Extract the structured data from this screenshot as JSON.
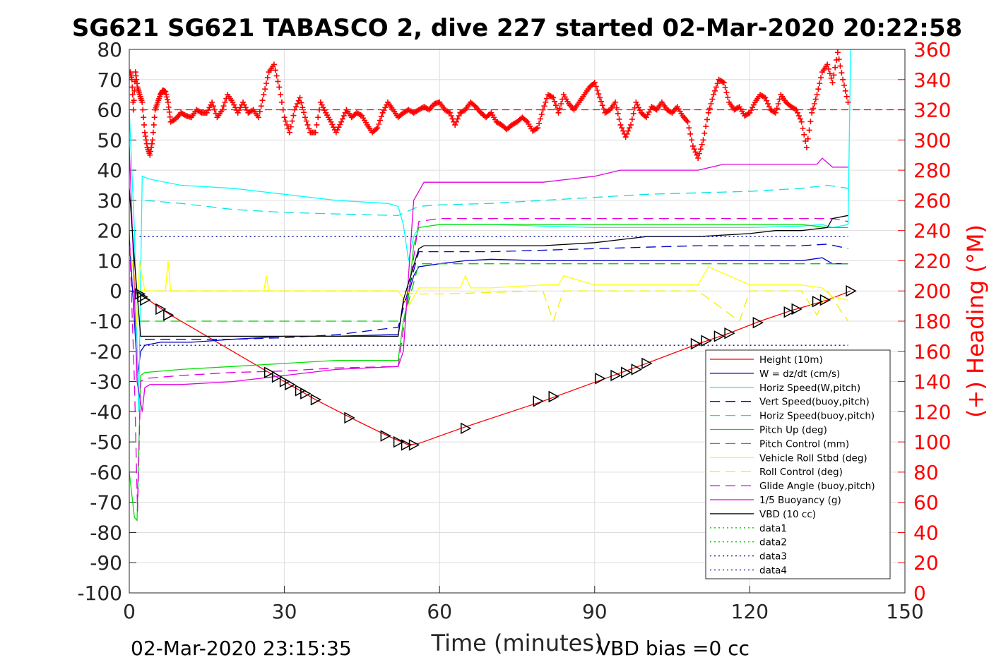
{
  "chart_data": {
    "type": "line",
    "title": "SG621 SG621 TABASCO 2, dive 227 started 02-Mar-2020 20:22:58",
    "xlabel": "Time (minutes)",
    "ylabel_right": "(+) Heading (°M)",
    "xlim": [
      0,
      150
    ],
    "ylim_left": [
      -100,
      80
    ],
    "ylim_right": [
      0,
      360
    ],
    "x_ticks": [
      "0",
      "30",
      "60",
      "90",
      "120",
      "150"
    ],
    "y_ticks_left": [
      "80",
      "70",
      "60",
      "50",
      "40",
      "30",
      "20",
      "10",
      "0",
      "-10",
      "-20",
      "-30",
      "-40",
      "-50",
      "-60",
      "-70",
      "-80",
      "-90",
      "-100"
    ],
    "y_ticks_right": [
      "360",
      "340",
      "320",
      "300",
      "280",
      "260",
      "240",
      "220",
      "200",
      "180",
      "160",
      "140",
      "120",
      "100",
      "80",
      "60",
      "40",
      "20",
      "0"
    ],
    "grid": true,
    "legend_position": "bottom-right",
    "footer_left": "02-Mar-2020 23:15:35",
    "footer_right": "VBD bias =0 cc",
    "series": [
      {
        "name": "Height (10m)",
        "color": "#ff0000",
        "style": "solid",
        "x": [
          0,
          2,
          8,
          20,
          27,
          36,
          44,
          50,
          54,
          56,
          65,
          80,
          92,
          100,
          110,
          116,
          122,
          128,
          135,
          139.5
        ],
        "y": [
          0,
          -1,
          -8,
          -20,
          -27,
          -36,
          -43,
          -48,
          -51,
          -50.5,
          -45,
          -36.5,
          -29,
          -24,
          -17.5,
          -14,
          -10,
          -6.5,
          -3,
          0
        ]
      },
      {
        "name": "W = dz/dt (cm/s)",
        "color": "#0000cc",
        "style": "solid",
        "x": [
          0,
          1,
          1.6,
          2.2,
          3,
          6,
          12,
          20,
          30,
          40,
          50,
          52,
          53,
          54,
          55,
          56,
          60,
          65,
          70,
          80,
          90,
          100,
          110,
          120,
          130,
          134,
          136,
          139
        ],
        "y": [
          18,
          -10,
          -28,
          -20,
          -18,
          -17,
          -17,
          -16,
          -15,
          -15,
          -14.5,
          -14.5,
          -4,
          -1,
          5,
          8,
          9,
          10,
          10.5,
          10,
          10,
          10,
          10,
          10,
          10,
          11,
          9,
          9
        ]
      },
      {
        "name": "Horiz Speed(W,pitch)",
        "color": "#00ffff",
        "style": "solid",
        "x": [
          0,
          1,
          1.8,
          2.5,
          4,
          10,
          20,
          30,
          40,
          50,
          52,
          53,
          54,
          55,
          56,
          60,
          70,
          80,
          90,
          100,
          110,
          120,
          130,
          134,
          136,
          139,
          139.5
        ],
        "y": [
          60,
          20,
          -40,
          38,
          37,
          35,
          34,
          32,
          30,
          29,
          28,
          22,
          10,
          18,
          21,
          22,
          22,
          21.5,
          21,
          21,
          21,
          21,
          21.5,
          22,
          21,
          22,
          80
        ]
      },
      {
        "name": "Vert Speed(buoy,pitch)",
        "color": "#0000cc",
        "style": "dash",
        "x": [
          3,
          10,
          20,
          30,
          40,
          52,
          56,
          60,
          70,
          80,
          90,
          100,
          110,
          120,
          130,
          135,
          139
        ],
        "y": [
          -16,
          -16,
          -16,
          -15.5,
          -14.5,
          -12,
          13,
          13,
          13,
          13.5,
          14,
          14.5,
          15,
          15,
          15,
          15.5,
          14
        ]
      },
      {
        "name": "Horiz Speed(buoy,pitch)",
        "color": "#00e5e5",
        "style": "dash",
        "x": [
          3,
          10,
          20,
          30,
          40,
          52,
          56,
          60,
          70,
          80,
          90,
          100,
          110,
          120,
          130,
          135,
          139
        ],
        "y": [
          30,
          29,
          27,
          26,
          25.5,
          25,
          28,
          28.5,
          29,
          30,
          31,
          32,
          32.5,
          33,
          34,
          35,
          34
        ]
      },
      {
        "name": "Pitch Up (deg)",
        "color": "#00e000",
        "style": "solid",
        "x": [
          0,
          1,
          1.5,
          2.2,
          3,
          10,
          20,
          30,
          40,
          52,
          53,
          54,
          55,
          56,
          60,
          70,
          80,
          90,
          100,
          110,
          120,
          130,
          135,
          139
        ],
        "y": [
          -60,
          -75,
          -76,
          -28,
          -27,
          -26,
          -25,
          -24,
          -23,
          -23,
          -10,
          -2,
          15,
          21,
          22,
          22,
          22,
          22,
          22,
          22,
          22,
          22,
          21,
          21
        ]
      },
      {
        "name": "Pitch Control (mm)",
        "color": "#00cc00",
        "style": "dash",
        "x": [
          2,
          53,
          56,
          139
        ],
        "y": [
          -10,
          -10,
          9,
          9
        ]
      },
      {
        "name": "Vehicle Roll Stbd (deg)",
        "color": "#ffff00",
        "style": "solid",
        "x": [
          0,
          1,
          1.5,
          2,
          3,
          5,
          7,
          7.5,
          8,
          10,
          20,
          26,
          26.5,
          27,
          30,
          40,
          52,
          54,
          56,
          60,
          64,
          65,
          66,
          70,
          80,
          83,
          84,
          90,
          100,
          110,
          112,
          120,
          130,
          134,
          136,
          139
        ],
        "y": [
          15,
          5,
          -12,
          10,
          0,
          0,
          0,
          10,
          0,
          0,
          0,
          0,
          5,
          0,
          0,
          0,
          0,
          -5,
          1,
          1,
          1,
          5,
          1,
          1,
          2,
          2,
          5,
          2,
          2,
          2,
          8,
          2,
          2,
          1,
          -2,
          -3
        ]
      },
      {
        "name": "Roll Control (deg)",
        "color": "#f0f000",
        "style": "dash",
        "x": [
          2,
          30,
          53,
          55,
          60,
          80,
          82,
          84,
          90,
          110,
          118,
          120,
          130,
          133,
          135,
          139
        ],
        "y": [
          0,
          0,
          0,
          -1,
          -1,
          0,
          -10,
          0,
          0,
          0,
          -10,
          0,
          0,
          -8,
          0,
          -10
        ]
      },
      {
        "name": "Glide Angle (buoy,pitch)",
        "color": "#e000e0",
        "style": "dash",
        "x": [
          0,
          1,
          1.6,
          2.2,
          3,
          10,
          20,
          30,
          40,
          52,
          56,
          60,
          70,
          80,
          90,
          100,
          110,
          120,
          130,
          136,
          139
        ],
        "y": [
          20,
          -30,
          -73,
          -30,
          -29,
          -28,
          -27,
          -26.5,
          -25.5,
          -25,
          23,
          24,
          24,
          24,
          24,
          24,
          24,
          24,
          24,
          24,
          23
        ]
      },
      {
        "name": "1/5 Buoyancy (g)",
        "color": "#e000e0",
        "style": "solid",
        "x": [
          0,
          0.8,
          1.5,
          2.5,
          3,
          4,
          10,
          20,
          30,
          40,
          52,
          53,
          55,
          57,
          60,
          70,
          80,
          85,
          90,
          95,
          100,
          105,
          110,
          115,
          120,
          125,
          130,
          133,
          134,
          136,
          139
        ],
        "y": [
          48,
          10,
          -30,
          -40,
          -32,
          -31,
          -31,
          -30,
          -28,
          -26,
          -25,
          -20,
          30,
          36,
          36,
          36,
          36,
          37,
          38,
          40,
          40,
          40,
          40,
          42,
          42,
          42,
          42,
          42,
          44,
          41,
          41
        ]
      },
      {
        "name": "VBD (10 cc)",
        "color": "#000000",
        "style": "solid",
        "x": [
          0,
          1,
          2.2,
          3,
          20,
          52,
          53,
          56,
          57,
          60,
          70,
          80,
          90,
          95,
          100,
          110,
          120,
          125,
          130,
          135,
          136,
          139
        ],
        "y": [
          34,
          10,
          -15,
          -15,
          -15,
          -15,
          -3,
          14,
          15,
          15,
          15,
          15,
          16,
          17,
          18,
          18,
          19,
          20,
          20,
          21,
          24,
          25
        ]
      },
      {
        "name": "data1",
        "color": "#00cc00",
        "style": "dot",
        "x": [],
        "y": []
      },
      {
        "name": "data2",
        "color": "#00cc00",
        "style": "dot",
        "x": [],
        "y": []
      },
      {
        "name": "data3",
        "color": "#000099",
        "style": "dot",
        "x": [
          2,
          139
        ],
        "y": [
          18,
          18
        ]
      },
      {
        "name": "data4",
        "color": "#000099",
        "style": "dot",
        "x": [
          2,
          139
        ],
        "y": [
          -18,
          -18
        ]
      }
    ],
    "heading_series": {
      "axis": "right",
      "color": "#ff0000",
      "marker": "+",
      "reference_line_deg": 320,
      "x": [
        0.2,
        0.5,
        0.8,
        1.2,
        1.6,
        2.0,
        2.5,
        3.0,
        3.5,
        4.0,
        4.5,
        5.0,
        5.5,
        6.0,
        6.5,
        7.0,
        7.5,
        8.0,
        9,
        10,
        11,
        12,
        13,
        14,
        15,
        16,
        17,
        18,
        19,
        20,
        21,
        22,
        23,
        24,
        25,
        26,
        27,
        28,
        29,
        30,
        31,
        32,
        33,
        34,
        35,
        36,
        37,
        38,
        39,
        40,
        41,
        42,
        43,
        44,
        45,
        46,
        47,
        48,
        49,
        50,
        51,
        52,
        53,
        54,
        55,
        56,
        57,
        58,
        59,
        60,
        61,
        62,
        63,
        64,
        65,
        66,
        67,
        68,
        69,
        70,
        71,
        72,
        73,
        74,
        75,
        76,
        77,
        78,
        79,
        80,
        81,
        82,
        83,
        84,
        85,
        86,
        87,
        88,
        89,
        90,
        91,
        92,
        93,
        94,
        95,
        96,
        97,
        98,
        99,
        100,
        101,
        102,
        103,
        104,
        105,
        106,
        107,
        108,
        109,
        110,
        111,
        112,
        113,
        114,
        115,
        116,
        117,
        118,
        119,
        120,
        121,
        122,
        123,
        124,
        125,
        126,
        127,
        128,
        129,
        130,
        131,
        132,
        133,
        134,
        135,
        136,
        137,
        138,
        139
      ],
      "y": [
        345,
        340,
        320,
        345,
        335,
        330,
        325,
        305,
        295,
        290,
        300,
        320,
        325,
        330,
        333,
        332,
        325,
        312,
        314,
        318,
        316,
        315,
        320,
        318,
        318,
        325,
        315,
        320,
        330,
        325,
        318,
        325,
        318,
        320,
        315,
        330,
        345,
        350,
        335,
        315,
        305,
        320,
        328,
        315,
        305,
        305,
        325,
        318,
        312,
        305,
        312,
        320,
        315,
        318,
        316,
        310,
        305,
        308,
        318,
        325,
        320,
        315,
        318,
        320,
        318,
        320,
        322,
        320,
        324,
        325,
        320,
        318,
        310,
        318,
        320,
        325,
        322,
        318,
        315,
        318,
        312,
        310,
        307,
        310,
        312,
        315,
        312,
        306,
        308,
        320,
        330,
        328,
        318,
        330,
        324,
        320,
        325,
        330,
        335,
        338,
        328,
        318,
        320,
        325,
        310,
        302,
        310,
        325,
        318,
        315,
        322,
        320,
        325,
        320,
        318,
        322,
        316,
        312,
        296,
        288,
        300,
        318,
        330,
        340,
        338,
        325,
        320,
        322,
        316,
        318,
        325,
        330,
        328,
        320,
        318,
        330,
        325,
        322,
        320,
        312,
        295,
        318,
        330,
        345,
        350,
        338,
        358,
        340,
        325
      ]
    },
    "triangle_markers": {
      "color": "#000000",
      "x": [
        2,
        2.5,
        3,
        6,
        7.5,
        27,
        28.5,
        30,
        31,
        33,
        34,
        36,
        42.5,
        49.5,
        52,
        53.5,
        55,
        65,
        79,
        82,
        91,
        94,
        96,
        98,
        100,
        109.5,
        111.5,
        114,
        116,
        121.5,
        127.5,
        129,
        133,
        134.5,
        139.5
      ],
      "y": [
        -1,
        -2,
        -3,
        -6,
        -8,
        -27,
        -28.5,
        -30,
        -31,
        -33,
        -34,
        -36,
        -42,
        -48,
        -50,
        -51,
        -51,
        -45.5,
        -36.5,
        -35,
        -29,
        -28,
        -27,
        -26,
        -24,
        -17.5,
        -16.5,
        -15,
        -14,
        -10.5,
        -7,
        -6,
        -3.5,
        -3,
        0
      ]
    }
  }
}
